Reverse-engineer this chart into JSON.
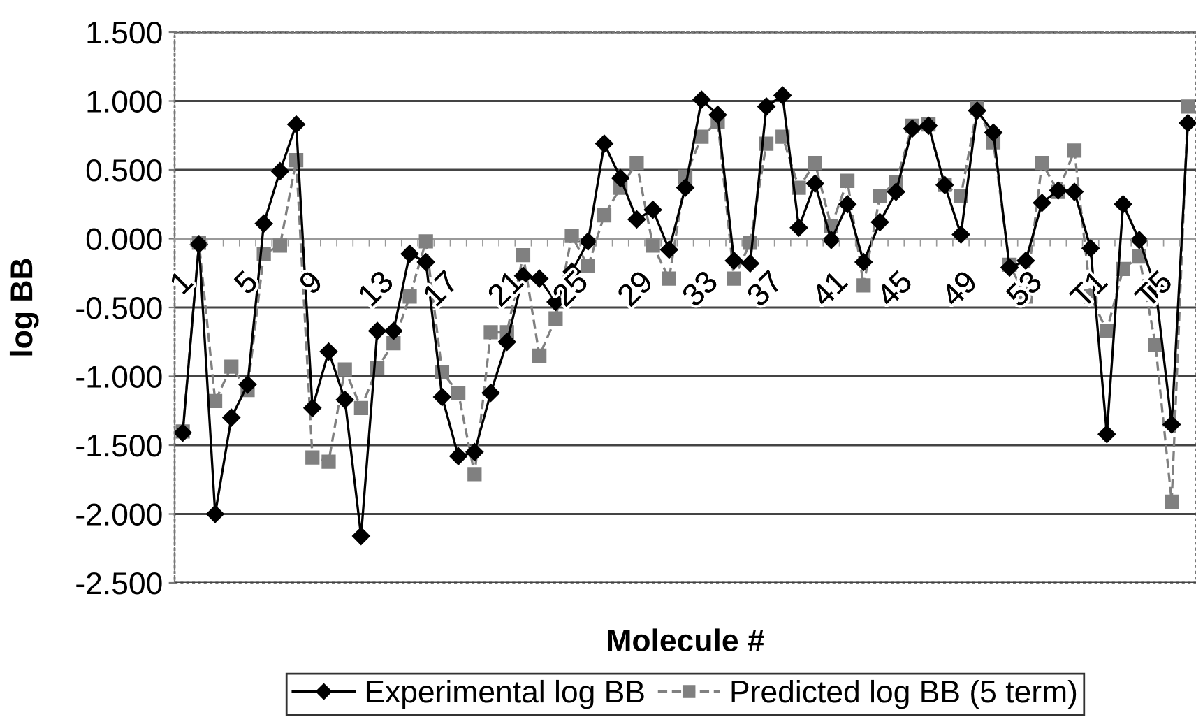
{
  "chart_data": {
    "type": "line",
    "xlabel": "Molecule #",
    "ylabel": "log BB",
    "categories": [
      "1",
      null,
      null,
      null,
      "5",
      null,
      null,
      null,
      "9",
      null,
      null,
      null,
      "13",
      null,
      null,
      null,
      "17",
      null,
      null,
      null,
      "21",
      null,
      null,
      null,
      "25",
      null,
      null,
      null,
      "29",
      null,
      null,
      null,
      "33",
      null,
      null,
      null,
      "37",
      null,
      null,
      null,
      "41",
      null,
      null,
      null,
      "45",
      null,
      null,
      null,
      "49",
      null,
      null,
      null,
      "53",
      null,
      null,
      null,
      "T1",
      null,
      null,
      null,
      "T5",
      null,
      null
    ],
    "series": [
      {
        "name": "Experimental log BB",
        "color": "#000000",
        "marker": "diamond",
        "line_style": "solid",
        "values": [
          -1.41,
          -0.04,
          -2.0,
          -1.3,
          -1.06,
          0.11,
          0.49,
          0.83,
          -1.23,
          -0.82,
          -1.17,
          -2.16,
          -0.67,
          -0.67,
          -0.11,
          -0.17,
          -1.15,
          -1.58,
          -1.55,
          -1.12,
          -0.75,
          -0.27,
          -0.29,
          -0.46,
          -0.24,
          -0.02,
          0.69,
          0.44,
          0.14,
          0.21,
          -0.08,
          0.37,
          1.01,
          0.9,
          -0.16,
          -0.18,
          0.96,
          1.04,
          0.08,
          0.4,
          -0.01,
          0.25,
          -0.17,
          0.12,
          0.34,
          0.8,
          0.82,
          0.39,
          0.03,
          0.93,
          0.77,
          -0.21,
          -0.16,
          0.26,
          0.35,
          0.34,
          -0.07,
          -1.42,
          0.25,
          -0.01,
          -0.35,
          -1.35,
          0.84
        ]
      },
      {
        "name": "Predicted log BB (5 term)",
        "color": "#808080",
        "marker": "square",
        "line_style": "dashed",
        "values": [
          -1.4,
          -0.03,
          -1.18,
          -0.93,
          -1.1,
          -0.11,
          -0.05,
          0.57,
          -1.59,
          -1.62,
          -0.95,
          -1.23,
          -0.94,
          -0.76,
          -0.42,
          -0.02,
          -0.97,
          -1.12,
          -1.71,
          -0.68,
          -0.68,
          -0.12,
          -0.85,
          -0.58,
          0.02,
          -0.2,
          0.17,
          0.37,
          0.55,
          -0.05,
          -0.29,
          0.45,
          0.74,
          0.85,
          -0.29,
          -0.03,
          0.69,
          0.74,
          0.37,
          0.55,
          0.09,
          0.42,
          -0.34,
          0.31,
          0.41,
          0.82,
          0.83,
          0.39,
          0.31,
          0.95,
          0.7,
          -0.19,
          -0.42,
          0.55,
          0.34,
          0.64,
          -0.42,
          -0.67,
          -0.22,
          -0.13,
          -0.77,
          -1.91,
          0.96
        ]
      }
    ],
    "ylim": [
      -2.5,
      1.5
    ],
    "yticks": [
      {
        "value": -2.5,
        "label": "-2.500"
      },
      {
        "value": -2.0,
        "label": "-2.000"
      },
      {
        "value": -1.5,
        "label": "-1.500"
      },
      {
        "value": -1.0,
        "label": "-1.000"
      },
      {
        "value": -0.5,
        "label": "-0.500"
      },
      {
        "value": 0.0,
        "label": "0.000"
      },
      {
        "value": 0.5,
        "label": "0.500"
      },
      {
        "value": 1.0,
        "label": "1.000"
      },
      {
        "value": 1.5,
        "label": "1.500"
      }
    ],
    "grid": "y",
    "legend": "bottom"
  }
}
